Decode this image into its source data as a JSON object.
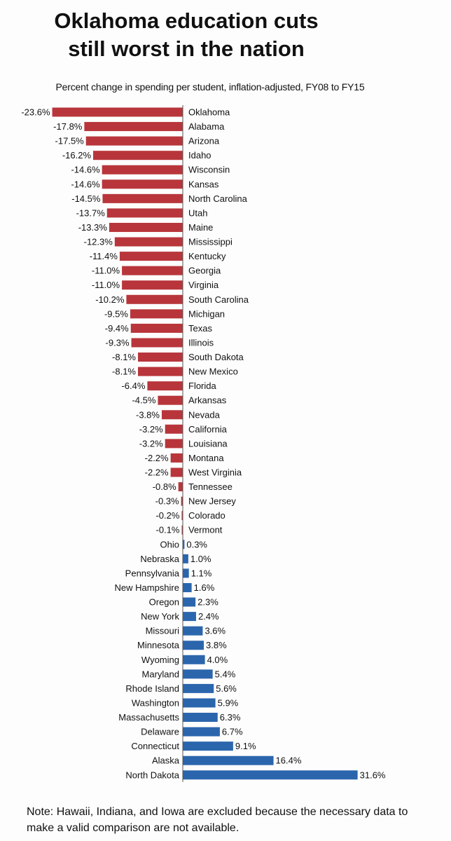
{
  "title_lines": [
    "Oklahoma education cuts",
    "still worst in the nation"
  ],
  "note": "Note: Hawaii, Indiana, and Iowa are excluded because the necessary data to make a valid comparison are not available.",
  "colors": {
    "negative": "#b8363b",
    "positive": "#2b66ad",
    "axis": "#555555"
  },
  "chart_data": {
    "type": "bar",
    "orientation": "horizontal",
    "subtitle": "Percent change in spending per student, inflation-adjusted, FY08 to FY15",
    "value_suffix": "%",
    "categories": [
      "Oklahoma",
      "Alabama",
      "Arizona",
      "Idaho",
      "Wisconsin",
      "Kansas",
      "North Carolina",
      "Utah",
      "Maine",
      "Mississippi",
      "Kentucky",
      "Georgia",
      "Virginia",
      "South Carolina",
      "Michigan",
      "Texas",
      "Illinois",
      "South Dakota",
      "New Mexico",
      "Florida",
      "Arkansas",
      "Nevada",
      "California",
      "Louisiana",
      "Montana",
      "West Virginia",
      "Tennessee",
      "New Jersey",
      "Colorado",
      "Vermont",
      "Ohio",
      "Nebraska",
      "Pennsylvania",
      "New Hampshire",
      "Oregon",
      "New York",
      "Missouri",
      "Minnesota",
      "Wyoming",
      "Maryland",
      "Rhode Island",
      "Washington",
      "Massachusetts",
      "Delaware",
      "Connecticut",
      "Alaska",
      "North Dakota"
    ],
    "values": [
      -23.6,
      -17.8,
      -17.5,
      -16.2,
      -14.6,
      -14.6,
      -14.5,
      -13.7,
      -13.3,
      -12.3,
      -11.4,
      -11.0,
      -11.0,
      -10.2,
      -9.5,
      -9.4,
      -9.3,
      -8.1,
      -8.1,
      -6.4,
      -4.5,
      -3.8,
      -3.2,
      -3.2,
      -2.2,
      -2.2,
      -0.8,
      -0.3,
      -0.2,
      -0.1,
      0.3,
      1.0,
      1.1,
      1.6,
      2.3,
      2.4,
      3.6,
      3.8,
      4.0,
      5.4,
      5.6,
      5.9,
      6.3,
      6.7,
      9.1,
      16.4,
      31.6
    ],
    "value_labels": [
      "-23.6%",
      "-17.8%",
      "-17.5%",
      "-16.2%",
      "-14.6%",
      "-14.6%",
      "-14.5%",
      "-13.7%",
      "-13.3%",
      "-12.3%",
      "-11.4%",
      "-11.0%",
      "-11.0%",
      "-10.2%",
      "-9.5%",
      "-9.4%",
      "-9.3%",
      "-8.1%",
      "-8.1%",
      "-6.4%",
      "-4.5%",
      "-3.8%",
      "-3.2%",
      "-3.2%",
      "-2.2%",
      "-2.2%",
      "-0.8%",
      "-0.3%",
      "-0.2%",
      "-0.1%",
      "0.3%",
      "1.0%",
      "1.1%",
      "1.6%",
      "2.3%",
      "2.4%",
      "3.6%",
      "3.8%",
      "4.0%",
      "5.4%",
      "5.6%",
      "5.9%",
      "6.3%",
      "6.7%",
      "9.1%",
      "16.4%",
      "31.6%"
    ],
    "grid": false,
    "legend": "none"
  }
}
